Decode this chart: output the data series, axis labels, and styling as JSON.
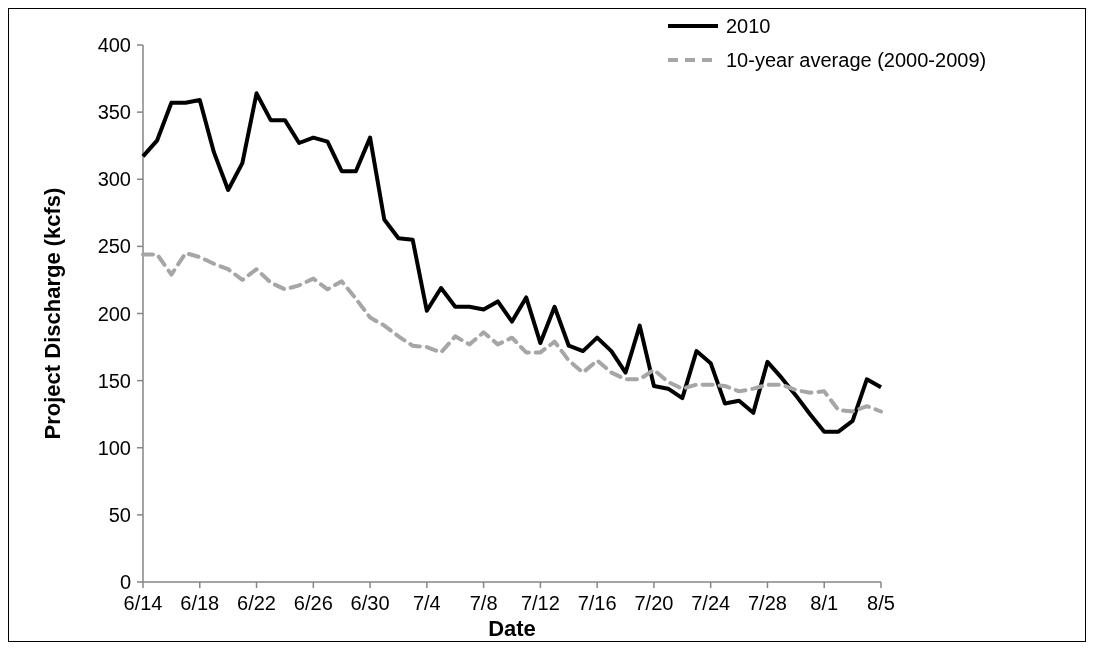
{
  "chart_data": {
    "type": "line",
    "xlabel": "Date",
    "ylabel": "Project Discharge (kcfs)",
    "categories": [
      "6/14",
      null,
      null,
      null,
      "6/18",
      null,
      null,
      null,
      "6/22",
      null,
      null,
      null,
      "6/26",
      null,
      null,
      null,
      "6/30",
      null,
      null,
      null,
      "7/4",
      null,
      null,
      null,
      "7/8",
      null,
      null,
      null,
      "7/12",
      null,
      null,
      null,
      "7/16",
      null,
      null,
      null,
      "7/20",
      null,
      null,
      null,
      "7/24",
      null,
      null,
      null,
      "7/28",
      null,
      null,
      null,
      "8/1",
      null,
      null,
      null,
      "8/5"
    ],
    "ylim": [
      0,
      400
    ],
    "yticks": [
      0,
      50,
      100,
      150,
      200,
      250,
      300,
      350,
      400
    ],
    "grid": false,
    "legend": "top right",
    "marker": "none",
    "series": [
      {
        "name": "2010",
        "color": "#000000",
        "line_style": "solid",
        "values": [
          317,
          329,
          357,
          357,
          359,
          320,
          292,
          312,
          364,
          344,
          344,
          327,
          331,
          328,
          306,
          306,
          331,
          270,
          256,
          255,
          202,
          219,
          205,
          205,
          203,
          209,
          194,
          212,
          178,
          205,
          176,
          172,
          182,
          172,
          156,
          191,
          146,
          144,
          137,
          172,
          163,
          133,
          135,
          126,
          164,
          152,
          139,
          125,
          112,
          112,
          120,
          151,
          145
        ]
      },
      {
        "name": "10-year average (2000-2009)",
        "color": "#a6a6a6",
        "line_style": "dashed",
        "values": [
          244,
          244,
          229,
          245,
          242,
          237,
          233,
          225,
          233,
          223,
          218,
          221,
          226,
          218,
          224,
          211,
          197,
          191,
          183,
          176,
          175,
          171,
          183,
          177,
          186,
          177,
          182,
          171,
          171,
          179,
          165,
          156,
          165,
          156,
          151,
          151,
          158,
          149,
          144,
          147,
          147,
          146,
          142,
          144,
          147,
          147,
          143,
          141,
          142,
          128,
          127,
          131,
          127
        ]
      }
    ]
  }
}
